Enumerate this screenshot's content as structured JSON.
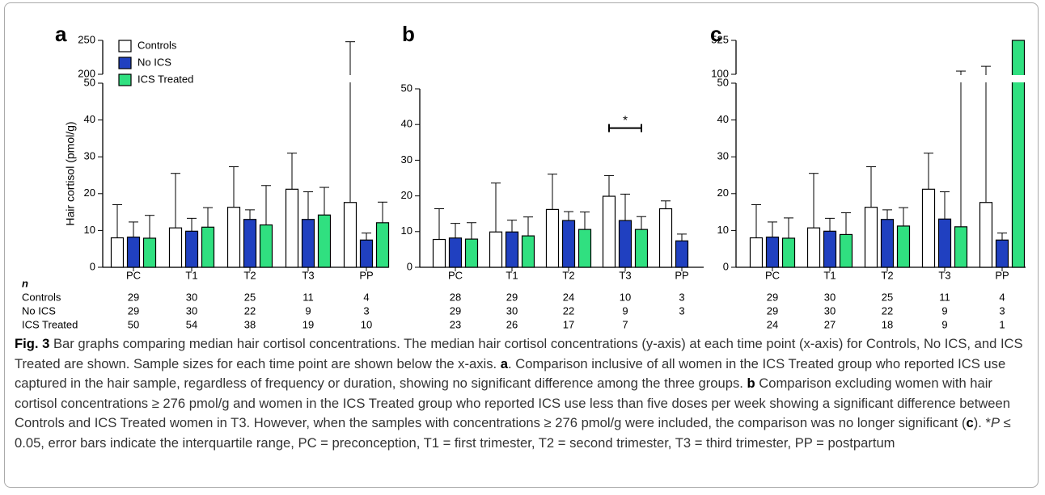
{
  "chart_data": [
    {
      "type": "bar",
      "panel": "a",
      "ylabel": "Hair cortisol (pmol/g)",
      "legend": "upper left",
      "categories": [
        "PC",
        "T1",
        "T2",
        "T3",
        "PP"
      ],
      "series": [
        {
          "name": "Controls",
          "color": "#ffffff",
          "values": [
            8,
            10.7,
            16.3,
            21.2,
            17.6
          ],
          "upper": [
            17,
            25.5,
            27.3,
            31,
            248
          ]
        },
        {
          "name": "No ICS",
          "color": "#2040c0",
          "values": [
            8.2,
            9.8,
            13,
            13,
            7.4
          ],
          "upper": [
            12.3,
            13.3,
            15.6,
            20.5,
            9.3
          ]
        },
        {
          "name": "ICS Treated",
          "color": "#30e080",
          "values": [
            7.9,
            10.9,
            11.5,
            14.2,
            12.1
          ],
          "upper": [
            14.1,
            16.2,
            22.2,
            21.7,
            17.7
          ]
        }
      ],
      "ylim": [
        0,
        50
      ],
      "yticks": [
        0,
        10,
        20,
        30,
        40,
        50
      ],
      "break": {
        "ylim": [
          200,
          250
        ],
        "yticks": [
          200,
          250
        ]
      },
      "sample_sizes": {
        "label": "n",
        "rows": [
          {
            "name": "Controls",
            "values": [
              29,
              30,
              25,
              11,
              4
            ]
          },
          {
            "name": "No ICS",
            "values": [
              29,
              30,
              22,
              9,
              3
            ]
          },
          {
            "name": "ICS Treated",
            "values": [
              50,
              54,
              38,
              19,
              10
            ]
          }
        ]
      }
    },
    {
      "type": "bar",
      "panel": "b",
      "categories": [
        "PC",
        "T1",
        "T2",
        "T3",
        "PP"
      ],
      "series": [
        {
          "color": "#ffffff",
          "values": [
            7.8,
            9.9,
            16.2,
            19.9,
            16.4
          ],
          "upper": [
            16.4,
            23.6,
            26.1,
            25.7,
            18.6
          ]
        },
        {
          "color": "#2040c0",
          "values": [
            8.2,
            9.9,
            13.1,
            13.1,
            7.4
          ],
          "upper": [
            12.3,
            13.2,
            15.6,
            20.5,
            9.3
          ]
        },
        {
          "color": "#30e080",
          "values": [
            7.9,
            8.8,
            10.6,
            10.6,
            null
          ],
          "upper": [
            12.5,
            14.1,
            15.5,
            14.2,
            null
          ]
        }
      ],
      "ylim": [
        0,
        50
      ],
      "yticks": [
        0,
        10,
        20,
        30,
        40,
        50
      ],
      "annotations": [
        {
          "text": "*",
          "category": "T3",
          "y": 39
        }
      ],
      "sample_sizes": {
        "rows": [
          {
            "values": [
              28,
              29,
              24,
              10,
              3
            ]
          },
          {
            "values": [
              29,
              30,
              22,
              9,
              3
            ]
          },
          {
            "values": [
              23,
              26,
              17,
              7,
              null
            ]
          }
        ]
      }
    },
    {
      "type": "bar",
      "panel": "c",
      "categories": [
        "PC",
        "T1",
        "T2",
        "T3",
        "PP"
      ],
      "series": [
        {
          "color": "#ffffff",
          "values": [
            8,
            10.7,
            16.3,
            21.2,
            17.6
          ],
          "upper": [
            17,
            25.5,
            27.3,
            31,
            200
          ]
        },
        {
          "color": "#2040c0",
          "values": [
            8.2,
            9.8,
            13,
            13.1,
            7.4
          ],
          "upper": [
            12.3,
            13.3,
            15.6,
            20.5,
            9.3
          ]
        },
        {
          "color": "#30e080",
          "values": [
            7.9,
            8.9,
            11.2,
            11,
            525
          ],
          "upper": [
            13.4,
            14.8,
            16.2,
            140,
            null
          ]
        }
      ],
      "ylim": [
        0,
        50
      ],
      "yticks": [
        0,
        10,
        20,
        30,
        40,
        50
      ],
      "break": {
        "ylim": [
          100,
          525
        ],
        "yticks": [
          100,
          525
        ]
      },
      "sample_sizes": {
        "rows": [
          {
            "values": [
              29,
              30,
              25,
              11,
              4
            ]
          },
          {
            "values": [
              29,
              30,
              22,
              9,
              3
            ]
          },
          {
            "values": [
              24,
              27,
              18,
              9,
              1
            ]
          }
        ]
      }
    }
  ],
  "caption": {
    "label": "Fig. 3",
    "parts": [
      " Bar graphs comparing median hair cortisol concentrations. The median hair cortisol concentrations (y-axis) at each time point (x-axis) for Controls, No ICS, and ICS Treated are shown. Sample sizes for each time point are shown below the x-axis. ",
      "a",
      ". Comparison inclusive of all women in the ICS Treated group who reported ICS use captured in the hair sample, regardless of frequency or duration, showing no significant difference among the three groups. ",
      "b",
      " Comparison excluding women with hair cortisol concentrations ≥ 276 pmol/g and women in the ICS Treated group who reported ICS use less than five doses per week showing a significant difference between Controls and ICS Treated women in T3. However, when the samples with concentrations ≥ 276 pmol/g were included, the comparison was no longer significant (",
      "c",
      "). *",
      "P",
      " ≤ 0.05, error bars indicate the interquartile range, PC = preconception, T1 = first trimester, T2 = second trimester, T3 = third trimester, PP = postpartum"
    ]
  }
}
